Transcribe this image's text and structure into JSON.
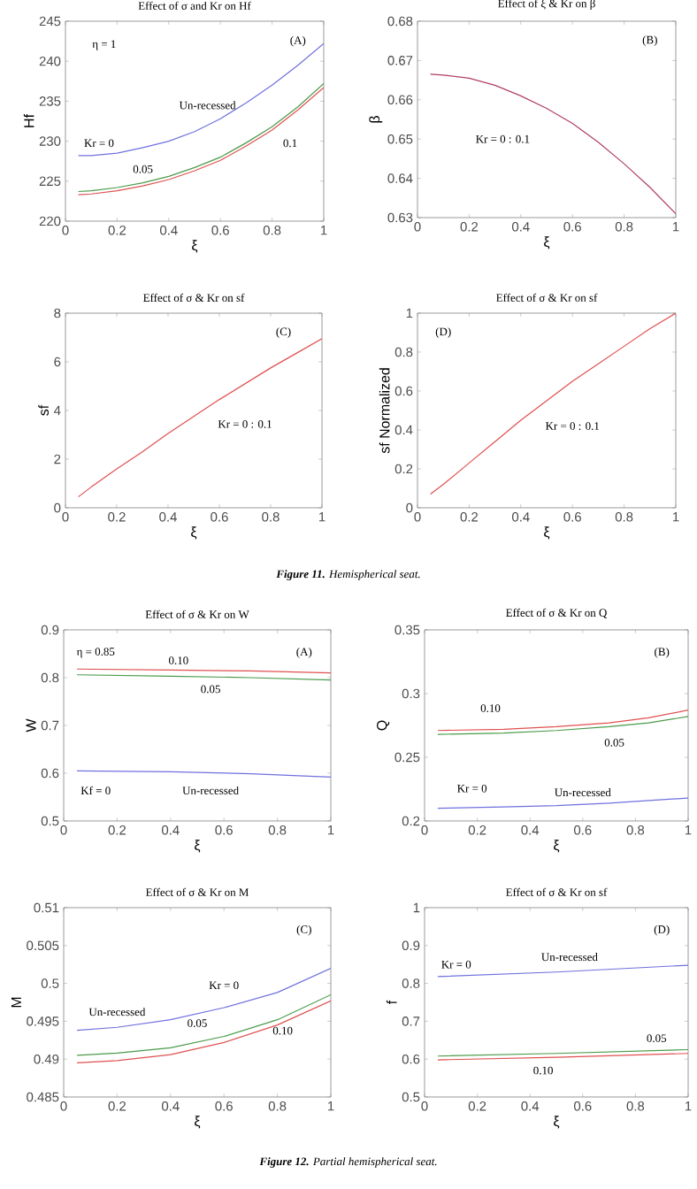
{
  "chart_data": [
    {
      "type": "line",
      "title": "Effect of σ and Kr on Hf",
      "xlabel": "ξ",
      "ylabel": "Hf",
      "xlim": [
        0,
        1
      ],
      "ylim": [
        220,
        245
      ],
      "xticks": [
        0,
        0.2,
        0.4,
        0.6,
        0.8,
        1
      ],
      "yticks": [
        220,
        225,
        230,
        235,
        240,
        245
      ],
      "x": [
        0.05,
        0.1,
        0.2,
        0.3,
        0.4,
        0.5,
        0.6,
        0.7,
        0.8,
        0.9,
        1.0
      ],
      "series": [
        {
          "color": "#7070e0",
          "values": [
            228.2,
            228.2,
            228.5,
            229.2,
            230.0,
            231.2,
            232.8,
            234.8,
            237.0,
            239.5,
            242.2
          ]
        },
        {
          "color": "#4a9a4a",
          "values": [
            223.7,
            223.8,
            224.2,
            224.8,
            225.6,
            226.7,
            228.0,
            229.8,
            231.8,
            234.3,
            237.2
          ]
        },
        {
          "color": "#e05050",
          "values": [
            223.3,
            223.4,
            223.8,
            224.4,
            225.2,
            226.3,
            227.6,
            229.4,
            231.4,
            233.9,
            236.7
          ]
        }
      ],
      "annotations": [
        "Un-recessed",
        "Kr = 0",
        "0.05",
        "0.1",
        "η = 1",
        "(A)"
      ]
    },
    {
      "type": "line",
      "title": "Effect of ξ & Kr on β",
      "xlabel": "ξ",
      "ylabel": "β",
      "xlim": [
        0,
        1
      ],
      "ylim": [
        0.63,
        0.68
      ],
      "xticks": [
        0,
        0.2,
        0.4,
        0.6,
        0.8,
        1
      ],
      "yticks": [
        0.63,
        0.64,
        0.65,
        0.66,
        0.67,
        0.68
      ],
      "x": [
        0.05,
        0.1,
        0.2,
        0.3,
        0.4,
        0.5,
        0.6,
        0.7,
        0.8,
        0.9,
        1.0
      ],
      "series": [
        {
          "color": "#b04060",
          "values": [
            0.6665,
            0.6663,
            0.6655,
            0.6637,
            0.661,
            0.6578,
            0.654,
            0.6492,
            0.6437,
            0.6377,
            0.631
          ]
        }
      ],
      "annotations": [
        "Kr = 0 : 0.1",
        "(B)"
      ]
    },
    {
      "type": "line",
      "title": "Effect of σ & Kr on sf",
      "xlabel": "ξ",
      "ylabel": "sf",
      "xlim": [
        0,
        1
      ],
      "ylim": [
        0,
        8
      ],
      "xticks": [
        0,
        0.2,
        0.4,
        0.6,
        0.8,
        1
      ],
      "yticks": [
        0,
        2,
        4,
        6,
        8
      ],
      "x": [
        0.05,
        0.1,
        0.2,
        0.3,
        0.4,
        0.5,
        0.6,
        0.7,
        0.8,
        0.9,
        1.0
      ],
      "series": [
        {
          "color": "#e05050",
          "values": [
            0.45,
            0.85,
            1.6,
            2.3,
            3.05,
            3.75,
            4.45,
            5.1,
            5.75,
            6.35,
            6.95
          ]
        }
      ],
      "annotations": [
        "Kr = 0 : 0.1",
        "(C)"
      ]
    },
    {
      "type": "line",
      "title": "Effect of σ & Kr on sf",
      "xlabel": "ξ",
      "ylabel": "sf  Normalized",
      "xlim": [
        0,
        1
      ],
      "ylim": [
        0,
        1
      ],
      "xticks": [
        0,
        0.2,
        0.4,
        0.6,
        0.8,
        1
      ],
      "yticks": [
        0,
        0.2,
        0.4,
        0.6,
        0.8,
        1
      ],
      "x": [
        0.05,
        0.1,
        0.2,
        0.3,
        0.4,
        0.5,
        0.6,
        0.7,
        0.8,
        0.9,
        1.0
      ],
      "series": [
        {
          "color": "#e05050",
          "values": [
            0.07,
            0.12,
            0.23,
            0.34,
            0.45,
            0.55,
            0.65,
            0.74,
            0.83,
            0.92,
            1.0
          ]
        }
      ],
      "annotations": [
        "Kr = 0 : 0.1",
        "(D)",
        "**Figure 11.** Hemispherical seat."
      ]
    },
    {
      "type": "line",
      "title": "Effect of σ & Kr on W",
      "xlabel": "ξ",
      "ylabel": "W",
      "xlim": [
        0,
        1
      ],
      "ylim": [
        0.5,
        0.9
      ],
      "xticks": [
        0,
        0.2,
        0.4,
        0.6,
        0.8,
        1
      ],
      "yticks": [
        0.5,
        0.6,
        0.7,
        0.8,
        0.9
      ],
      "x": [
        0.05,
        0.4,
        0.7,
        1.0
      ],
      "series": [
        {
          "color": "#7070e0",
          "values": [
            0.605,
            0.603,
            0.599,
            0.592
          ]
        },
        {
          "color": "#4a9a4a",
          "values": [
            0.806,
            0.803,
            0.8,
            0.795
          ]
        },
        {
          "color": "#e05050",
          "values": [
            0.818,
            0.816,
            0.814,
            0.81
          ]
        }
      ],
      "annotations": [
        "0.10",
        "0.05",
        "Kf = 0",
        "Un-recessed",
        "η = 0.85",
        "(A)"
      ]
    },
    {
      "type": "line",
      "title": "Effect of σ & Kr on Q",
      "xlabel": "ξ",
      "ylabel": "Q",
      "xlim": [
        0,
        1
      ],
      "ylim": [
        0.2,
        0.35
      ],
      "xticks": [
        0,
        0.2,
        0.4,
        0.6,
        0.8,
        1
      ],
      "yticks": [
        0.2,
        0.25,
        0.3,
        0.35
      ],
      "x": [
        0.05,
        0.3,
        0.5,
        0.7,
        0.85,
        1.0
      ],
      "series": [
        {
          "color": "#7070e0",
          "values": [
            0.21,
            0.211,
            0.212,
            0.214,
            0.216,
            0.218
          ]
        },
        {
          "color": "#4a9a4a",
          "values": [
            0.268,
            0.269,
            0.271,
            0.274,
            0.277,
            0.282
          ]
        },
        {
          "color": "#e05050",
          "values": [
            0.271,
            0.272,
            0.274,
            0.277,
            0.281,
            0.287
          ]
        }
      ],
      "annotations": [
        "0.10",
        "0.05",
        "Kr = 0",
        "Un-recessed",
        "(B)"
      ]
    },
    {
      "type": "line",
      "title": "Effect of σ & Kr on M",
      "xlabel": "ξ",
      "ylabel": "M",
      "xlim": [
        0,
        1
      ],
      "ylim": [
        0.485,
        0.51
      ],
      "xticks": [
        0,
        0.2,
        0.4,
        0.6,
        0.8,
        1
      ],
      "yticks": [
        0.485,
        0.49,
        0.495,
        0.5,
        0.505,
        0.51
      ],
      "x": [
        0.05,
        0.2,
        0.4,
        0.6,
        0.8,
        1.0
      ],
      "series": [
        {
          "color": "#7070e0",
          "values": [
            0.4938,
            0.4942,
            0.4952,
            0.4968,
            0.4988,
            0.502
          ]
        },
        {
          "color": "#4a9a4a",
          "values": [
            0.4905,
            0.4908,
            0.4915,
            0.493,
            0.4952,
            0.4985
          ]
        },
        {
          "color": "#e05050",
          "values": [
            0.4895,
            0.4898,
            0.4906,
            0.4922,
            0.4945,
            0.4977
          ]
        }
      ],
      "annotations": [
        "Un-recessed",
        "Kr = 0",
        "0.05",
        "0.10",
        "(C)"
      ]
    },
    {
      "type": "line",
      "title": "Effect of σ & Kr on sf",
      "xlabel": "ξ",
      "ylabel": "f",
      "xlim": [
        0,
        1
      ],
      "ylim": [
        0.5,
        1
      ],
      "xticks": [
        0,
        0.2,
        0.4,
        0.6,
        0.8,
        1
      ],
      "yticks": [
        0.5,
        0.6,
        0.7,
        0.8,
        0.9,
        1
      ],
      "x": [
        0.05,
        0.5,
        1.0
      ],
      "series": [
        {
          "color": "#7070e0",
          "values": [
            0.818,
            0.83,
            0.848
          ]
        },
        {
          "color": "#4a9a4a",
          "values": [
            0.608,
            0.615,
            0.625
          ]
        },
        {
          "color": "#e05050",
          "values": [
            0.598,
            0.605,
            0.615
          ]
        }
      ],
      "annotations": [
        "Kr = 0",
        "Un-recessed",
        "0.05",
        "0.10",
        "(D)",
        "**Figure 12.** Partial hemispherical seat."
      ]
    }
  ]
}
